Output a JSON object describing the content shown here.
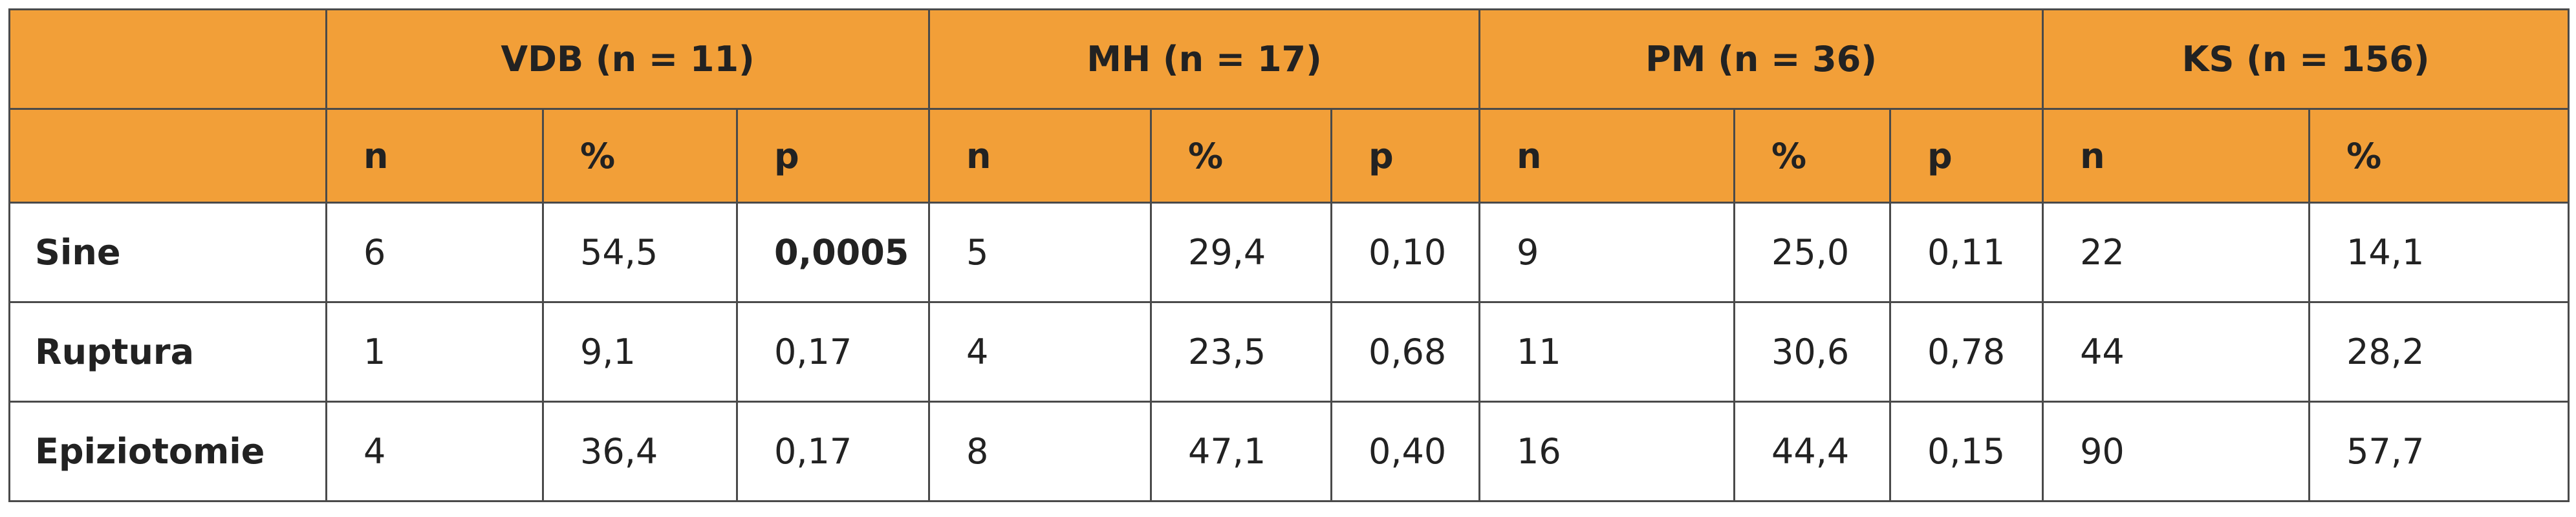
{
  "table": {
    "groups": [
      "VDB (n = 11)",
      "MH (n = 17)",
      "PM (n = 36)",
      "KS (n = 156)"
    ],
    "subheaders": [
      "n",
      "%",
      "p",
      "n",
      "%",
      "p",
      "n",
      "%",
      "p",
      "n",
      "%"
    ],
    "rows": [
      {
        "label": "Sine",
        "cells": [
          "6",
          "54,5",
          "0,0005",
          "5",
          "29,4",
          "0,10",
          "9",
          "25,0",
          "0,11",
          "22",
          "14,1"
        ]
      },
      {
        "label": "Ruptura",
        "cells": [
          "1",
          "9,1",
          "0,17",
          "4",
          "23,5",
          "0,68",
          "11",
          "30,6",
          "0,78",
          "44",
          "28,2"
        ]
      },
      {
        "label": "Epiziotomie",
        "cells": [
          "4",
          "36,4",
          "0,17",
          "8",
          "47,1",
          "0,40",
          "16",
          "44,4",
          "0,15",
          "90",
          "57,7"
        ]
      }
    ],
    "bold_cells": [
      [
        0,
        2
      ]
    ]
  }
}
